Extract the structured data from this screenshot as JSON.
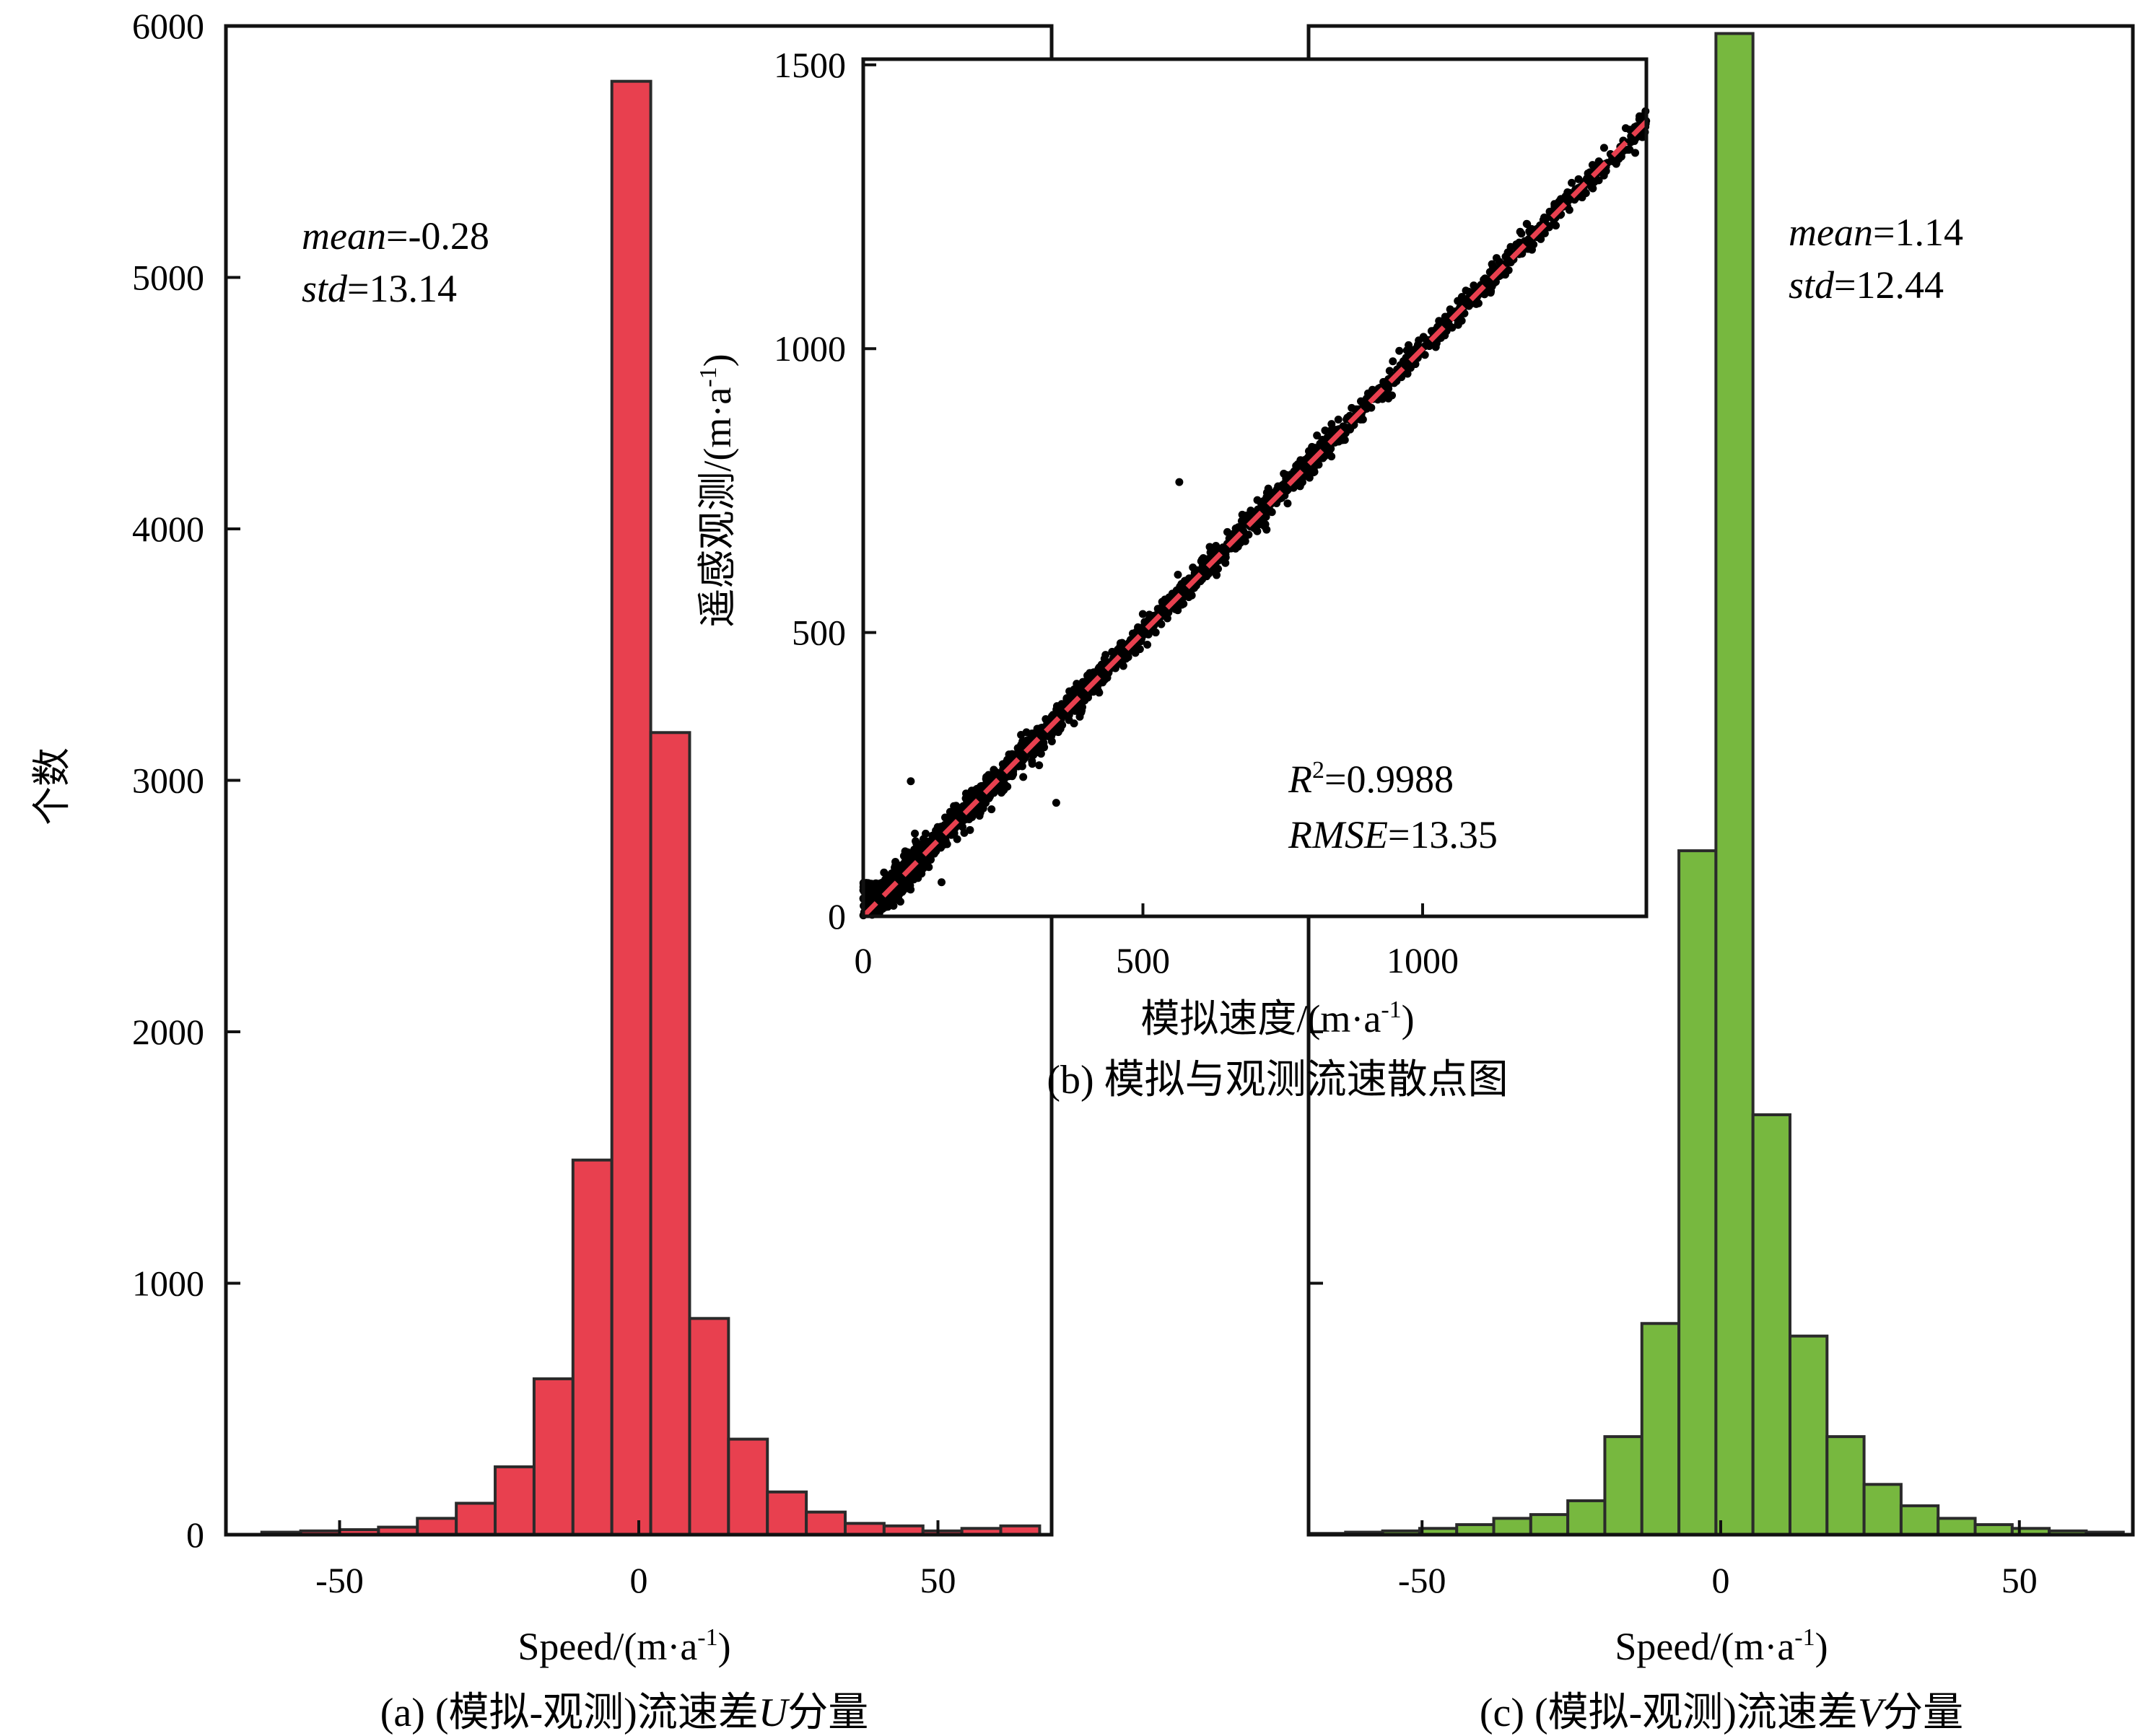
{
  "figure": {
    "ylabel_shared": "个数"
  },
  "chart_data": [
    {
      "id": "a",
      "type": "bar",
      "caption": "(a) (模拟-观测)流速差U分量",
      "caption_prefix": "(a) (模拟-观测)流速差",
      "caption_var": "U",
      "caption_suffix": "分量",
      "xlabel": "Speed/(m·a",
      "xlabel_sup": "-1",
      "xlabel_end": ")",
      "ylabel": "个数",
      "xlim": [
        -69,
        69
      ],
      "ylim": [
        0,
        6000
      ],
      "xticks": [
        -50,
        0,
        50
      ],
      "yticks": [
        0,
        1000,
        2000,
        3000,
        4000,
        5000,
        6000
      ],
      "color": "#e8404f",
      "bin_edges": [
        -63,
        -56.5,
        -50,
        -43.5,
        -37,
        -30.5,
        -24,
        -17.5,
        -11,
        -4.5,
        2,
        8.5,
        15,
        21.5,
        28,
        34.5,
        41,
        47.5,
        54,
        60.5,
        67
      ],
      "values": [
        10,
        15,
        20,
        30,
        65,
        125,
        270,
        620,
        1490,
        5780,
        3190,
        860,
        380,
        170,
        90,
        45,
        35,
        15,
        25,
        35
      ],
      "stats": [
        {
          "name": "mean",
          "value": "-0.28"
        },
        {
          "name": "std",
          "value": "13.14"
        }
      ]
    },
    {
      "id": "b",
      "type": "scatter",
      "caption": "(b) 模拟与观测流速散点图",
      "xlabel": "模拟速度/(m·a",
      "xlabel_sup": "-1",
      "xlabel_end": ")",
      "ylabel": "遥感观测/(m·a",
      "ylabel_sup": "-1",
      "ylabel_end": ")",
      "xlim": [
        0,
        1400
      ],
      "ylim": [
        0,
        1510
      ],
      "xticks": [
        0,
        500,
        1000
      ],
      "yticks": [
        0,
        500,
        1000,
        1500
      ],
      "point_color": "#000000",
      "fit_line": {
        "slope": 1.0,
        "intercept": 0,
        "color": "#e8404f",
        "style": "dashed"
      },
      "stats": [
        {
          "name": "R",
          "sup": "2",
          "value": "0.9988"
        },
        {
          "name": "RMSE",
          "value": "13.35"
        }
      ],
      "n_points_approx": 2600,
      "outliers": [
        [
          565,
          765
        ],
        [
          345,
          200
        ],
        [
          85,
          238
        ],
        [
          140,
          60
        ],
        [
          1315,
          1330
        ],
        [
          1380,
          1345
        ]
      ]
    },
    {
      "id": "c",
      "type": "bar",
      "caption": "(c) (模拟-观测)流速差V分量",
      "caption_prefix": "(c) (模拟-观测)流速差",
      "caption_var": "V",
      "caption_suffix": "分量",
      "xlabel": "Speed/(m·a",
      "xlabel_sup": "-1",
      "xlabel_end": ")",
      "xlim": [
        -69,
        69
      ],
      "ylim": [
        0,
        6000
      ],
      "xticks": [
        -50,
        0,
        50
      ],
      "color": "#77b83f",
      "bin_edges": [
        -69,
        -62.8,
        -56.6,
        -50.4,
        -44.2,
        -38,
        -31.8,
        -25.6,
        -19.4,
        -13.2,
        -7,
        -0.8,
        5.4,
        11.6,
        17.8,
        24,
        30.2,
        36.4,
        42.6,
        48.8,
        55,
        61.2,
        67.4
      ],
      "values": [
        5,
        10,
        15,
        25,
        40,
        65,
        80,
        135,
        390,
        840,
        2720,
        5970,
        1670,
        790,
        390,
        200,
        115,
        65,
        40,
        25,
        15,
        10
      ],
      "stats": [
        {
          "name": "mean",
          "value": "1.14"
        },
        {
          "name": "std",
          "value": "12.44"
        }
      ]
    }
  ]
}
